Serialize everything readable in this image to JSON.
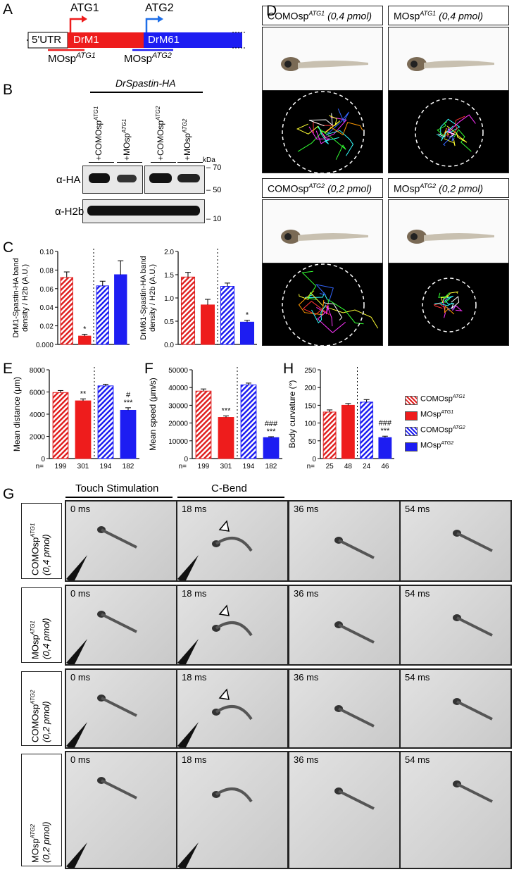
{
  "panel_letters": {
    "a": "A",
    "b": "B",
    "c": "C",
    "d": "D",
    "e": "E",
    "f": "F",
    "g": "G",
    "h": "H"
  },
  "panelA": {
    "atg1": "ATG1",
    "atg2": "ATG2",
    "utr": "5'UTR",
    "drm1": "DrM1",
    "drm61": "DrM61",
    "mo1": "MOsp",
    "mo1_sup": "ATG1",
    "mo2": "MOsp",
    "mo2_sup": "ATG2",
    "colors": {
      "drm1": "#ee1c1c",
      "drm61": "#1d1df2"
    }
  },
  "panelB": {
    "title": "DrSpastin-HA",
    "lanes": [
      "+COMOsp",
      "+MOsp",
      "+COMOsp",
      "+MOsp"
    ],
    "lane_sups": [
      "ATG1",
      "ATG1",
      "ATG2",
      "ATG2"
    ],
    "kda": "kDa",
    "markers": [
      "70",
      "50",
      "10"
    ],
    "rows": [
      "α-HA",
      "α-H2b"
    ]
  },
  "panelD": {
    "headers": [
      "COMOsp",
      "MOsp",
      "COMOsp",
      "MOsp"
    ],
    "header_sups": [
      "ATG1",
      "ATG1",
      "ATG2",
      "ATG2"
    ],
    "header_doses": [
      "(0,4 pmol)",
      "(0,4 pmol)",
      "(0,2 pmol)",
      "(0,2 pmol)"
    ]
  },
  "panelG": {
    "col_headers": [
      "Touch Stimulation",
      "C-Bend"
    ],
    "times": [
      "0 ms",
      "18 ms",
      "36 ms",
      "54 ms"
    ],
    "rows": [
      {
        "name": "COMOsp",
        "sup": "ATG1",
        "dose": "(0,4 pmol)"
      },
      {
        "name": "MOsp",
        "sup": "ATG1",
        "dose": "(0,4 pmol)"
      },
      {
        "name": "COMOsp",
        "sup": "ATG2",
        "dose": "(0,2 pmol)"
      },
      {
        "name": "MOsp",
        "sup": "ATG2",
        "dose": "(0,2 pmol)"
      }
    ]
  },
  "legend": {
    "items": [
      "COMOsp",
      "MOsp",
      "COMOsp",
      "MOsp"
    ],
    "sups": [
      "ATG1",
      "ATG1",
      "ATG2",
      "ATG2"
    ]
  },
  "chart_data": [
    {
      "type": "bar",
      "panel": "C-left",
      "ylabel": "DrM1-Spastin-HA band density / H2b (A.U.)",
      "ylim": [
        0,
        0.1
      ],
      "yticks": [
        "0.000",
        "0.02",
        "0.04",
        "0.06",
        "0.08",
        "0.10"
      ],
      "values": [
        0.072,
        0.009,
        0.063,
        0.075
      ],
      "errors": [
        0.006,
        0.002,
        0.005,
        0.015
      ],
      "sig": [
        "",
        "*",
        "",
        ""
      ]
    },
    {
      "type": "bar",
      "panel": "C-right",
      "ylabel": "DrM61-Spastin-HA band density / H2b (A.U.)",
      "ylim": [
        0,
        2.0
      ],
      "yticks": [
        "0.0",
        "0.5",
        "1.0",
        "1.5",
        "2.0"
      ],
      "values": [
        1.45,
        0.85,
        1.25,
        0.48
      ],
      "errors": [
        0.1,
        0.12,
        0.07,
        0.04
      ],
      "sig": [
        "",
        "",
        "",
        "*"
      ]
    },
    {
      "type": "bar",
      "panel": "E",
      "ylabel": "Mean distance (μm)",
      "ylim": [
        0,
        8000
      ],
      "yticks": [
        "0",
        "2000",
        "4000",
        "6000",
        "8000"
      ],
      "values": [
        5950,
        5200,
        6550,
        4350
      ],
      "errors": [
        180,
        180,
        150,
        230
      ],
      "sig": [
        "",
        "**",
        "",
        "#\n***"
      ],
      "n": [
        "199",
        "301",
        "194",
        "182"
      ]
    },
    {
      "type": "bar",
      "panel": "F",
      "ylabel": "Mean speed (μm/s)",
      "ylim": [
        0,
        50000
      ],
      "yticks": [
        "0",
        "10000",
        "20000",
        "30000",
        "40000",
        "50000"
      ],
      "values": [
        38000,
        23200,
        41500,
        11800
      ],
      "errors": [
        1200,
        800,
        1000,
        500
      ],
      "sig": [
        "",
        "***",
        "",
        "###\n***"
      ],
      "n": [
        "199",
        "301",
        "194",
        "182"
      ]
    },
    {
      "type": "bar",
      "panel": "H",
      "ylabel": "Body curvature (°)",
      "ylim": [
        0,
        250
      ],
      "yticks": [
        "0",
        "50",
        "100",
        "150",
        "200",
        "250"
      ],
      "values": [
        131,
        150,
        159,
        59
      ],
      "errors": [
        6,
        5,
        7,
        4
      ],
      "sig": [
        "",
        "",
        "",
        "###\n***"
      ],
      "n": [
        "25",
        "48",
        "24",
        "46"
      ]
    }
  ],
  "n_label": "n="
}
